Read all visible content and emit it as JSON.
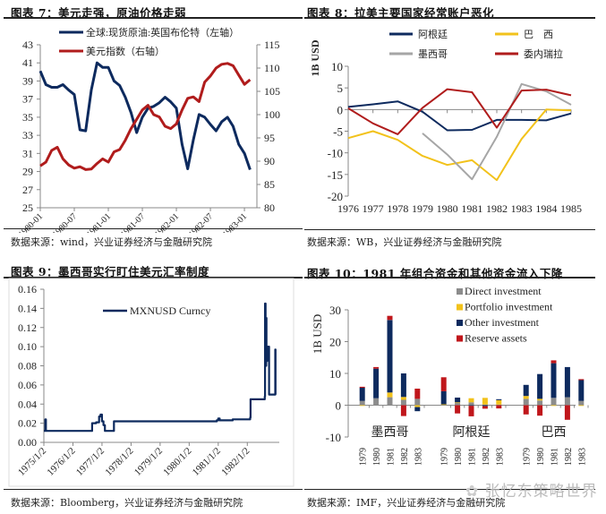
{
  "panels": {
    "fig7": {
      "title": "图表 7：美元走强，原油价格走弱",
      "source": "数据来源：wind，兴业证券经济与金融研究院"
    },
    "fig8": {
      "title": "图表 8：拉美主要国家经常账户恶化",
      "source": "数据来源：WB，兴业证券经济与金融研究院"
    },
    "fig9": {
      "title": "图表 9：墨西哥实行盯住美元汇率制度",
      "source": "数据来源：Bloomberg，兴业证券经济与金融研究院"
    },
    "fig10": {
      "title": "图表 10：1981 年组合资金和其他资金流入下降",
      "source": "数据来源：IMF，兴业证券经济与金融研究院"
    }
  },
  "watermark": "张忆东策略世界",
  "chart_data": [
    {
      "id": "fig7",
      "type": "line",
      "title": "美元走强，原油价格走弱",
      "x_ticks": [
        "1980-01",
        "1980-07",
        "1981-01",
        "1981-07",
        "1982-01",
        "1982-07",
        "1983-01"
      ],
      "left_axis": {
        "ticks": [
          25,
          27,
          29,
          31,
          33,
          35,
          37,
          39,
          41,
          43
        ],
        "ylim": [
          25,
          43
        ]
      },
      "right_axis": {
        "ticks": [
          80,
          85,
          90,
          95,
          100,
          105,
          110,
          115
        ],
        "ylim": [
          80,
          115
        ]
      },
      "legend_position": "top-left",
      "series": [
        {
          "name": "全球:现货原油:英国布伦特（左轴）",
          "axis": "left",
          "color": "#0d2a5e",
          "values": [
            40.1,
            38.6,
            38.3,
            38.3,
            38.6,
            38.0,
            37.5,
            33.6,
            33.5,
            38.0,
            41.0,
            40.5,
            40.5,
            39.0,
            38.5,
            37.2,
            35.5,
            33.3,
            35.0,
            36.0,
            36.2,
            36.6,
            37.2,
            36.7,
            36.0,
            32.0,
            29.3,
            32.5,
            35.3,
            35.0,
            34.2,
            33.5,
            34.5,
            35.0,
            34.0,
            32.0,
            31.0,
            29.2
          ]
        },
        {
          "name": "美元指数（右轴）",
          "axis": "right",
          "color": "#b01c1c",
          "values": [
            89,
            89.8,
            92.3,
            93,
            90.5,
            89.2,
            88.5,
            88.8,
            88.2,
            88.3,
            89.5,
            90.5,
            89.8,
            92,
            92.5,
            94.5,
            97,
            99,
            101,
            102,
            100,
            99.5,
            97.5,
            97,
            98,
            101,
            103.5,
            103.8,
            102.8,
            107,
            108.3,
            110,
            110.8,
            111,
            110.5,
            108.5,
            106.5,
            107.5
          ]
        }
      ]
    },
    {
      "id": "fig8",
      "type": "line",
      "title": "拉美主要国家经常账户恶化",
      "ylabel": "1B USD",
      "x": [
        1976,
        1977,
        1978,
        1979,
        1980,
        1981,
        1982,
        1983,
        1984,
        1985
      ],
      "y_ticks": [
        -20,
        -15,
        -10,
        -5,
        0,
        5,
        10
      ],
      "ylim": [
        -20,
        10
      ],
      "legend_position": "top",
      "series": [
        {
          "name": "阿根廷",
          "color": "#0d2a5e",
          "values": [
            0.6,
            1.2,
            1.9,
            -0.5,
            -4.8,
            -4.7,
            -2.4,
            -2.4,
            -2.5,
            -0.9
          ]
        },
        {
          "name": "巴　西",
          "color": "#f2c21b",
          "values": [
            -6.6,
            -5.0,
            -7.0,
            -10.7,
            -12.8,
            -11.7,
            -16.3,
            -6.8,
            0.0,
            -0.2
          ]
        },
        {
          "name": "墨西哥",
          "color": "#a6a6a6",
          "values": [
            null,
            null,
            null,
            -5.5,
            -10.4,
            -16.1,
            -6.3,
            5.9,
            4.2,
            1.1
          ]
        },
        {
          "name": "委内瑞拉",
          "color": "#b01c1c",
          "values": [
            0.3,
            -3.2,
            -5.7,
            0.4,
            4.7,
            4.0,
            -4.2,
            4.4,
            4.6,
            3.3
          ]
        }
      ]
    },
    {
      "id": "fig9",
      "type": "line",
      "title": "墨西哥实行盯住美元汇率制度",
      "x_ticks": [
        "1975/1/2",
        "1976/1/2",
        "1977/1/2",
        "1978/1/2",
        "1979/1/2",
        "1980/1/2",
        "1981/1/2",
        "1982/1/2"
      ],
      "y_ticks": [
        "0.00",
        "0.02",
        "0.04",
        "0.06",
        "0.08",
        "0.10",
        "0.12",
        "0.14",
        "0.16"
      ],
      "ylim": [
        0,
        0.16
      ],
      "legend_position": "top-center",
      "series": [
        {
          "name": "MXNUSD Curncy",
          "color": "#0d2a5e",
          "points": [
            [
              1975.0,
              0.012
            ],
            [
              1975.05,
              0.024
            ],
            [
              1975.07,
              0.012
            ],
            [
              1976.65,
              0.012
            ],
            [
              1976.66,
              0.02
            ],
            [
              1976.8,
              0.021
            ],
            [
              1976.9,
              0.027
            ],
            [
              1976.95,
              0.029
            ],
            [
              1977.0,
              0.022
            ],
            [
              1977.05,
              0.018
            ],
            [
              1977.1,
              0.012
            ],
            [
              1977.4,
              0.012
            ],
            [
              1977.41,
              0.022
            ],
            [
              1978.5,
              0.022
            ],
            [
              1980.0,
              0.022
            ],
            [
              1980.95,
              0.023
            ],
            [
              1981.0,
              0.025
            ],
            [
              1981.05,
              0.023
            ],
            [
              1981.5,
              0.024
            ],
            [
              1982.1,
              0.026
            ],
            [
              1982.11,
              0.045
            ],
            [
              1982.6,
              0.048
            ],
            [
              1982.61,
              0.145
            ],
            [
              1982.63,
              0.08
            ],
            [
              1982.65,
              0.13
            ],
            [
              1982.66,
              0.085
            ],
            [
              1982.68,
              0.1
            ],
            [
              1982.7,
              0.088
            ],
            [
              1982.72,
              0.1
            ],
            [
              1982.75,
              0.05
            ],
            [
              1982.95,
              0.05
            ],
            [
              1982.96,
              0.097
            ],
            [
              1982.97,
              0.05
            ]
          ]
        }
      ]
    },
    {
      "id": "fig10",
      "type": "bar",
      "stacked": true,
      "title": "1981 年组合资金和其他资金流入下降",
      "ylabel": "1B USD",
      "y_ticks": [
        -10,
        0,
        10,
        20,
        30
      ],
      "ylim": [
        -10,
        30
      ],
      "legend_position": "top-right",
      "groups": [
        "墨西哥",
        "阿根廷",
        "巴西"
      ],
      "years": [
        "1979",
        "1980",
        "1981",
        "1982",
        "1983"
      ],
      "series": [
        {
          "name": "Direct investment",
          "color": "#8c8c8c",
          "values": [
            [
              1.4,
              2.2,
              2.5,
              1.7,
              2.0
            ],
            [
              0.2,
              0.7,
              0.9,
              0.2,
              0.2
            ],
            [
              2.0,
              1.5,
              2.3,
              2.5,
              1.4
            ]
          ]
        },
        {
          "name": "Portfolio investment",
          "color": "#f2c21b",
          "values": [
            [
              -0.2,
              0.0,
              1.5,
              0.9,
              -0.6
            ],
            [
              0.1,
              0.2,
              1.3,
              2.1,
              1.4
            ],
            [
              0.9,
              0.5,
              -0.2,
              0.0,
              -0.2
            ]
          ]
        },
        {
          "name": "Other investment",
          "color": "#0d2a5e",
          "values": [
            [
              4.1,
              9.3,
              22.8,
              7.4,
              -1.3
            ],
            [
              4.1,
              1.5,
              -0.2,
              -0.3,
              0.3
            ],
            [
              3.5,
              7.8,
              10.9,
              9.5,
              6.5
            ]
          ]
        },
        {
          "name": "Reserve assets",
          "color": "#c0161b",
          "values": [
            [
              0.3,
              0.5,
              1.3,
              -3.4,
              3.2
            ],
            [
              4.4,
              -2.6,
              -3.3,
              -0.8,
              -1.0
            ],
            [
              -2.9,
              -3.3,
              0.9,
              -4.6,
              0.3
            ]
          ]
        }
      ]
    }
  ]
}
